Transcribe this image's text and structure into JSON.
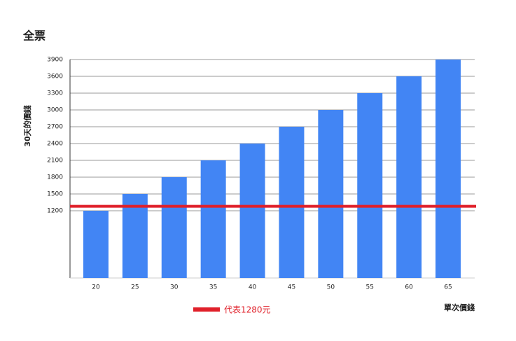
{
  "chart_data": {
    "type": "bar",
    "title": "全票",
    "x_label": "單次價錢",
    "y_label": "30天的價錢",
    "categories": [
      "20",
      "25",
      "30",
      "35",
      "40",
      "45",
      "50",
      "55",
      "60",
      "65"
    ],
    "values": [
      1200,
      1500,
      1800,
      2100,
      2400,
      2700,
      3000,
      3300,
      3600,
      3900
    ],
    "color": "#4285f4",
    "ylim": [
      0,
      3900
    ],
    "yticks": [
      1200,
      1500,
      1800,
      2100,
      2400,
      2700,
      3000,
      3300,
      3600,
      3900
    ],
    "grid": true,
    "reference_line": {
      "value": 1280,
      "label": "代表1280元",
      "color": "#e0202a"
    }
  }
}
